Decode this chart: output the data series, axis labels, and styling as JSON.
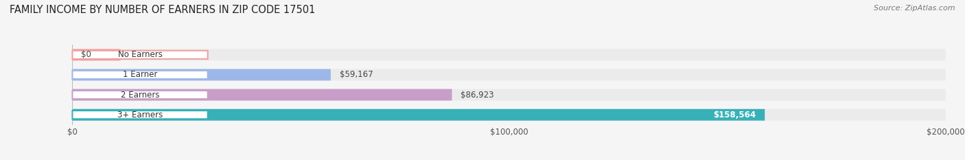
{
  "title": "FAMILY INCOME BY NUMBER OF EARNERS IN ZIP CODE 17501",
  "source": "Source: ZipAtlas.com",
  "categories": [
    "No Earners",
    "1 Earner",
    "2 Earners",
    "3+ Earners"
  ],
  "values": [
    0,
    59167,
    86923,
    158564
  ],
  "labels": [
    "$0",
    "$59,167",
    "$86,923",
    "$158,564"
  ],
  "bar_colors": [
    "#f0a0a0",
    "#9db8e8",
    "#c89ec8",
    "#38b0b8"
  ],
  "bar_bg_color": "#ebebeb",
  "background_color": "#f5f5f5",
  "xlim": [
    0,
    200000
  ],
  "xticks": [
    0,
    100000,
    200000
  ],
  "xtick_labels": [
    "$0",
    "$100,000",
    "$200,000"
  ],
  "title_fontsize": 10.5,
  "source_fontsize": 8,
  "bar_label_fontsize": 8.5,
  "category_fontsize": 8.5,
  "tick_fontsize": 8.5,
  "bar_height": 0.58
}
